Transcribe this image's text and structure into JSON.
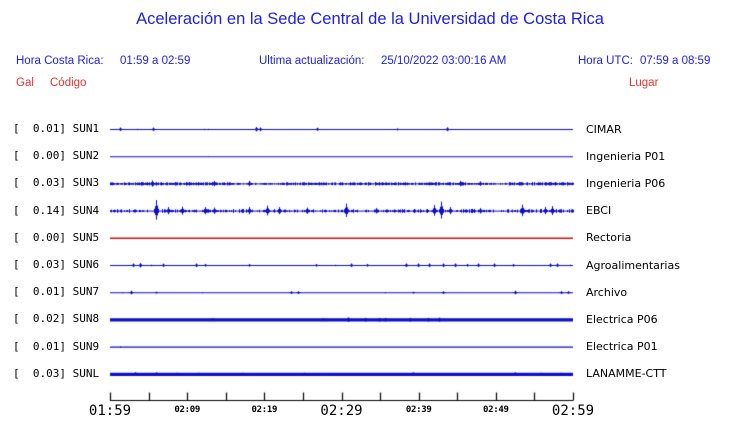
{
  "title": "Aceleración en la Sede Central de la Universidad de Costa Rica",
  "header": {
    "hora_cr_label": "Hora Costa Rica:",
    "hora_cr_value": "01:59 a 02:59",
    "update_label": "Ultima actualización:",
    "update_value": "25/10/2022 03:00:16 AM",
    "hora_utc_label": "Hora UTC:",
    "hora_utc_value": "07:59 a 08:59",
    "col_gal": "Gal",
    "col_codigo": "Código",
    "col_lugar": "Lugar"
  },
  "colors": {
    "header_blue": "#2020dd",
    "label_red": "#e03333",
    "trace_blue": "#0d0dcc",
    "trace_red": "#d60d0d",
    "axis_black": "#000000"
  },
  "chart_data": {
    "type": "line",
    "title": "Aceleración en la Sede Central de la Universidad de Costa Rica",
    "ylabel": "Gal",
    "x_axis": {
      "start": "01:59",
      "end": "02:59",
      "tick_interval_min": 5,
      "tick_count": 13,
      "labels": [
        {
          "text": "01:59",
          "size": "large",
          "tick": 0
        },
        {
          "text": "02:09",
          "size": "small",
          "tick": 2
        },
        {
          "text": "02:19",
          "size": "small",
          "tick": 4
        },
        {
          "text": "02:29",
          "size": "large",
          "tick": 6
        },
        {
          "text": "02:39",
          "size": "small",
          "tick": 8
        },
        {
          "text": "02:49",
          "size": "small",
          "tick": 10
        },
        {
          "text": "02:59",
          "size": "large",
          "tick": 12
        }
      ]
    },
    "traces": [
      {
        "code": "SUN1",
        "gal": "0.01",
        "label": "[  0.01] SUN1",
        "location": "CIMAR",
        "color": "#0d0dcc",
        "thickness": 1.1,
        "noise": {
          "density": 0.012,
          "jitter": 0.8
        },
        "clusters": [],
        "spikes": [
          [
            0.022,
            2
          ],
          [
            0.093,
            2
          ],
          [
            0.315,
            2.5
          ],
          [
            0.323,
            2
          ],
          [
            0.447,
            1.8
          ],
          [
            0.62,
            1.2
          ],
          [
            0.728,
            2.2
          ]
        ]
      },
      {
        "code": "SUN2",
        "gal": "0.00",
        "label": "[  0.00] SUN2",
        "location": "Ingenieria P01",
        "color": "#0d0dcc",
        "thickness": 1.1,
        "noise": {
          "density": 0.004,
          "jitter": 0.5
        },
        "clusters": [],
        "spikes": []
      },
      {
        "code": "SUN3",
        "gal": "0.03",
        "label": "[  0.03] SUN3",
        "location": "Ingenieria P06",
        "color": "#0d0dcc",
        "thickness": 1.0,
        "noise": {
          "density": 0.45,
          "jitter": 1.2
        },
        "clusters": [
          [
            0.0,
            0.06,
            1.6,
            0.7
          ],
          [
            0.06,
            0.26,
            2.0,
            0.8
          ],
          [
            0.37,
            0.52,
            1.7,
            0.65
          ],
          [
            0.52,
            0.63,
            1.9,
            0.7
          ],
          [
            0.63,
            0.78,
            1.8,
            0.7
          ],
          [
            0.86,
            1.0,
            1.9,
            0.75
          ]
        ],
        "spikes": [
          [
            0.09,
            3.5
          ],
          [
            0.225,
            3
          ],
          [
            0.3,
            3
          ],
          [
            0.755,
            3
          ],
          [
            0.8,
            2.5
          ]
        ]
      },
      {
        "code": "SUN4",
        "gal": "0.14",
        "label": "[  0.14] SUN4",
        "location": "EBCI",
        "color": "#0d0dcc",
        "thickness": 1.0,
        "noise": {
          "density": 0.28,
          "jitter": 1.6
        },
        "clusters": [
          [
            0.0,
            0.35,
            2.2,
            0.45
          ],
          [
            0.35,
            0.62,
            2.0,
            0.35
          ],
          [
            0.62,
            0.82,
            2.2,
            0.4
          ],
          [
            0.85,
            1.0,
            2.2,
            0.45
          ]
        ],
        "spikes": [
          [
            0.1,
            11
          ],
          [
            0.125,
            4
          ],
          [
            0.155,
            4.5
          ],
          [
            0.205,
            4
          ],
          [
            0.225,
            3.5
          ],
          [
            0.3,
            4
          ],
          [
            0.34,
            5.5
          ],
          [
            0.365,
            4
          ],
          [
            0.425,
            3.5
          ],
          [
            0.51,
            7.5
          ],
          [
            0.575,
            3
          ],
          [
            0.7,
            6
          ],
          [
            0.715,
            9.5
          ],
          [
            0.735,
            4
          ],
          [
            0.8,
            3
          ],
          [
            0.89,
            6.5
          ],
          [
            0.94,
            4
          ],
          [
            0.955,
            5
          ]
        ]
      },
      {
        "code": "SUN5",
        "gal": "0.00",
        "label": "[  0.00] SUN5",
        "location": "Rectoria",
        "color": "#d60d0d",
        "thickness": 1.4,
        "noise": {
          "density": 0,
          "jitter": 0
        },
        "clusters": [],
        "spikes": []
      },
      {
        "code": "SUN6",
        "gal": "0.03",
        "label": "[  0.03] SUN6",
        "location": "Agroalimentarias",
        "color": "#0d0dcc",
        "thickness": 1.1,
        "noise": {
          "density": 0.025,
          "jitter": 0.9
        },
        "clusters": [],
        "spikes": [
          [
            0.05,
            2
          ],
          [
            0.065,
            2.5
          ],
          [
            0.115,
            1.8
          ],
          [
            0.185,
            2
          ],
          [
            0.205,
            1.5
          ],
          [
            0.3,
            1.5
          ],
          [
            0.445,
            1.5
          ],
          [
            0.52,
            2
          ],
          [
            0.555,
            1.5
          ],
          [
            0.64,
            2
          ],
          [
            0.665,
            2
          ],
          [
            0.69,
            2
          ],
          [
            0.72,
            2
          ],
          [
            0.745,
            2
          ],
          [
            0.77,
            1.5
          ],
          [
            0.795,
            2
          ],
          [
            0.83,
            2
          ],
          [
            0.87,
            1.5
          ],
          [
            0.95,
            2
          ],
          [
            0.965,
            2
          ]
        ]
      },
      {
        "code": "SUN7",
        "gal": "0.01",
        "label": "[  0.01] SUN7",
        "location": "Archivo",
        "color": "#0d0dcc",
        "thickness": 1.1,
        "noise": {
          "density": 0.01,
          "jitter": 0.7
        },
        "clusters": [],
        "spikes": [
          [
            0.045,
            2
          ],
          [
            0.1,
            1
          ],
          [
            0.39,
            1.5
          ],
          [
            0.405,
            1.5
          ],
          [
            0.655,
            1
          ],
          [
            0.72,
            1.5
          ],
          [
            0.875,
            2
          ],
          [
            0.975,
            1.5
          ],
          [
            0.99,
            1.5
          ]
        ]
      },
      {
        "code": "SUN8",
        "gal": "0.02",
        "label": "[  0.02] SUN8",
        "location": "Electrica P06",
        "color": "#0d0dcc",
        "thickness": 3.2,
        "noise": {
          "density": 0.012,
          "jitter": 1.1
        },
        "clusters": [],
        "spikes": [
          [
            0.22,
            1.5
          ],
          [
            0.46,
            1.5
          ],
          [
            0.515,
            2.5
          ],
          [
            0.55,
            2
          ],
          [
            0.58,
            2
          ],
          [
            0.594,
            2
          ],
          [
            0.648,
            2
          ],
          [
            0.687,
            2
          ],
          [
            0.71,
            2.2
          ]
        ]
      },
      {
        "code": "SUN9",
        "gal": "0.01",
        "label": "[  0.01] SUN9",
        "location": "Electrica P01",
        "color": "#0d0dcc",
        "thickness": 1.2,
        "noise": {
          "density": 0.006,
          "jitter": 0.6
        },
        "clusters": [],
        "spikes": []
      },
      {
        "code": "SUNL",
        "gal": "0.03",
        "label": "[  0.03] SUNL",
        "location": "LANAMME-CTT",
        "color": "#0d0dcc",
        "thickness": 3.2,
        "noise": {
          "density": 0.012,
          "jitter": 1.0
        },
        "clusters": [],
        "spikes": [
          [
            0.055,
            2
          ],
          [
            0.1,
            2
          ],
          [
            0.145,
            1.5
          ],
          [
            0.19,
            1.5
          ],
          [
            0.285,
            1.5
          ],
          [
            0.42,
            1.5
          ],
          [
            0.655,
            2
          ],
          [
            0.875,
            2
          ],
          [
            0.93,
            1.5
          ],
          [
            0.975,
            1.5
          ]
        ]
      }
    ]
  }
}
